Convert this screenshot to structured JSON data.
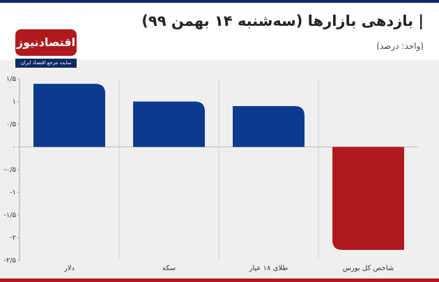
{
  "chart_data": {
    "type": "bar",
    "title": "| بازدهی بازارها (سه‌شنبه ۱۴ بهمن ۹۹)",
    "subtitle": "(واحد: درصد)",
    "brand": "اقتصادنیوز",
    "tagline": "سایت مرجع اقتصاد ایران",
    "categories": [
      "دلار",
      "سکه",
      "طلای ۱۸ عیار",
      "شاخص کل بورس"
    ],
    "values": [
      1.39,
      1.0,
      0.9,
      -2.27
    ],
    "colors": [
      "#0b3a8e",
      "#0b3a8e",
      "#0b3a8e",
      "#b0191e"
    ],
    "ylim": [
      -2.5,
      1.5
    ],
    "yticks": [
      {
        "value": 1.5,
        "label": "۱/۵"
      },
      {
        "value": 1,
        "label": "۱"
      },
      {
        "value": 0.5,
        "label": "۰/۵"
      },
      {
        "value": 0,
        "label": "۰"
      },
      {
        "value": -0.5,
        "label": "-۰/۵"
      },
      {
        "value": -1,
        "label": "-۱"
      },
      {
        "value": -1.5,
        "label": "-۱/۵"
      },
      {
        "value": -2,
        "label": "-۲"
      },
      {
        "value": -2.5,
        "label": "-۲/۵"
      }
    ]
  }
}
